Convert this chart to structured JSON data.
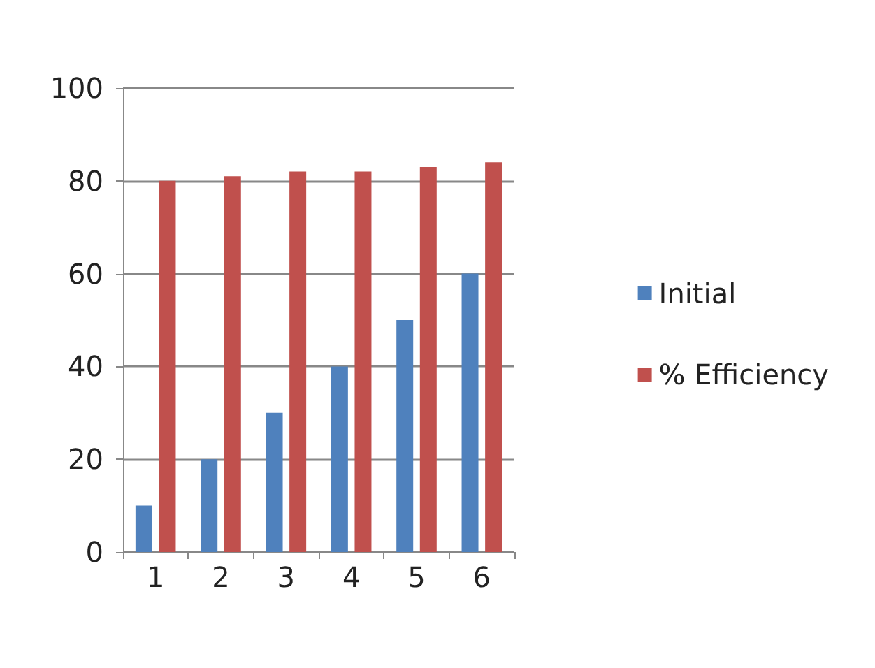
{
  "chart_data": {
    "type": "bar",
    "categories": [
      "1",
      "2",
      "3",
      "4",
      "5",
      "6"
    ],
    "series": [
      {
        "name": "Initial",
        "color": "#4f81bd",
        "values": [
          10,
          20,
          30,
          40,
          50,
          60
        ]
      },
      {
        "name": "% Efficiency",
        "color": "#c0504d",
        "values": [
          80,
          81,
          82,
          82,
          83,
          84
        ]
      }
    ],
    "ylim": [
      0,
      100
    ],
    "yticks": [
      0,
      20,
      40,
      60,
      80,
      100
    ],
    "grid": "y",
    "legend": "right"
  }
}
